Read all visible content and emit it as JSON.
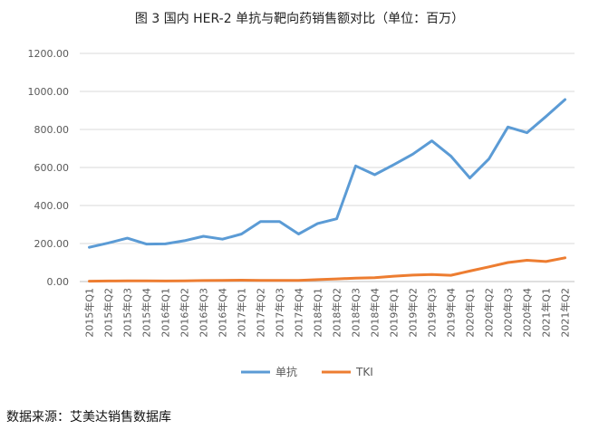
{
  "chart_data": {
    "type": "line",
    "title": "图 3 国内 HER-2 单抗与靶向药销售额对比（单位：百万）",
    "xlabel": "",
    "ylabel": "",
    "ylim": [
      0,
      1200
    ],
    "yticks": [
      "0.00",
      "200.00",
      "400.00",
      "600.00",
      "800.00",
      "1000.00",
      "1200.00"
    ],
    "grid": true,
    "legend": "bottom",
    "categories": [
      "2015年Q1",
      "2015年Q2",
      "2015年Q3",
      "2015年Q4",
      "2016年Q1",
      "2016年Q2",
      "2016年Q3",
      "2016年Q4",
      "2017年Q1",
      "2017年Q2",
      "2017年Q3",
      "2017年Q4",
      "2018年Q1",
      "2018年Q2",
      "2018年Q3",
      "2018年Q4",
      "2019年Q1",
      "2019年Q2",
      "2019年Q3",
      "2019年Q4",
      "2020年Q1",
      "2020年Q2",
      "2020年Q3",
      "2020年Q4",
      "2021年Q1",
      "2021年Q2"
    ],
    "series": [
      {
        "name": "单抗",
        "color": "#5B9BD5",
        "values": [
          180,
          203,
          228,
          197,
          198,
          215,
          238,
          223,
          250,
          315,
          315,
          250,
          305,
          330,
          608,
          562,
          615,
          670,
          740,
          660,
          545,
          645,
          813,
          783,
          868,
          957
        ]
      },
      {
        "name": "TKI",
        "color": "#ED7D31",
        "values": [
          2,
          3,
          4,
          4,
          3,
          4,
          5,
          6,
          7,
          6,
          6,
          6,
          10,
          14,
          18,
          20,
          28,
          34,
          37,
          33,
          55,
          77,
          100,
          112,
          105,
          125
        ]
      }
    ]
  },
  "source": "数据来源：艾美达销售数据库"
}
